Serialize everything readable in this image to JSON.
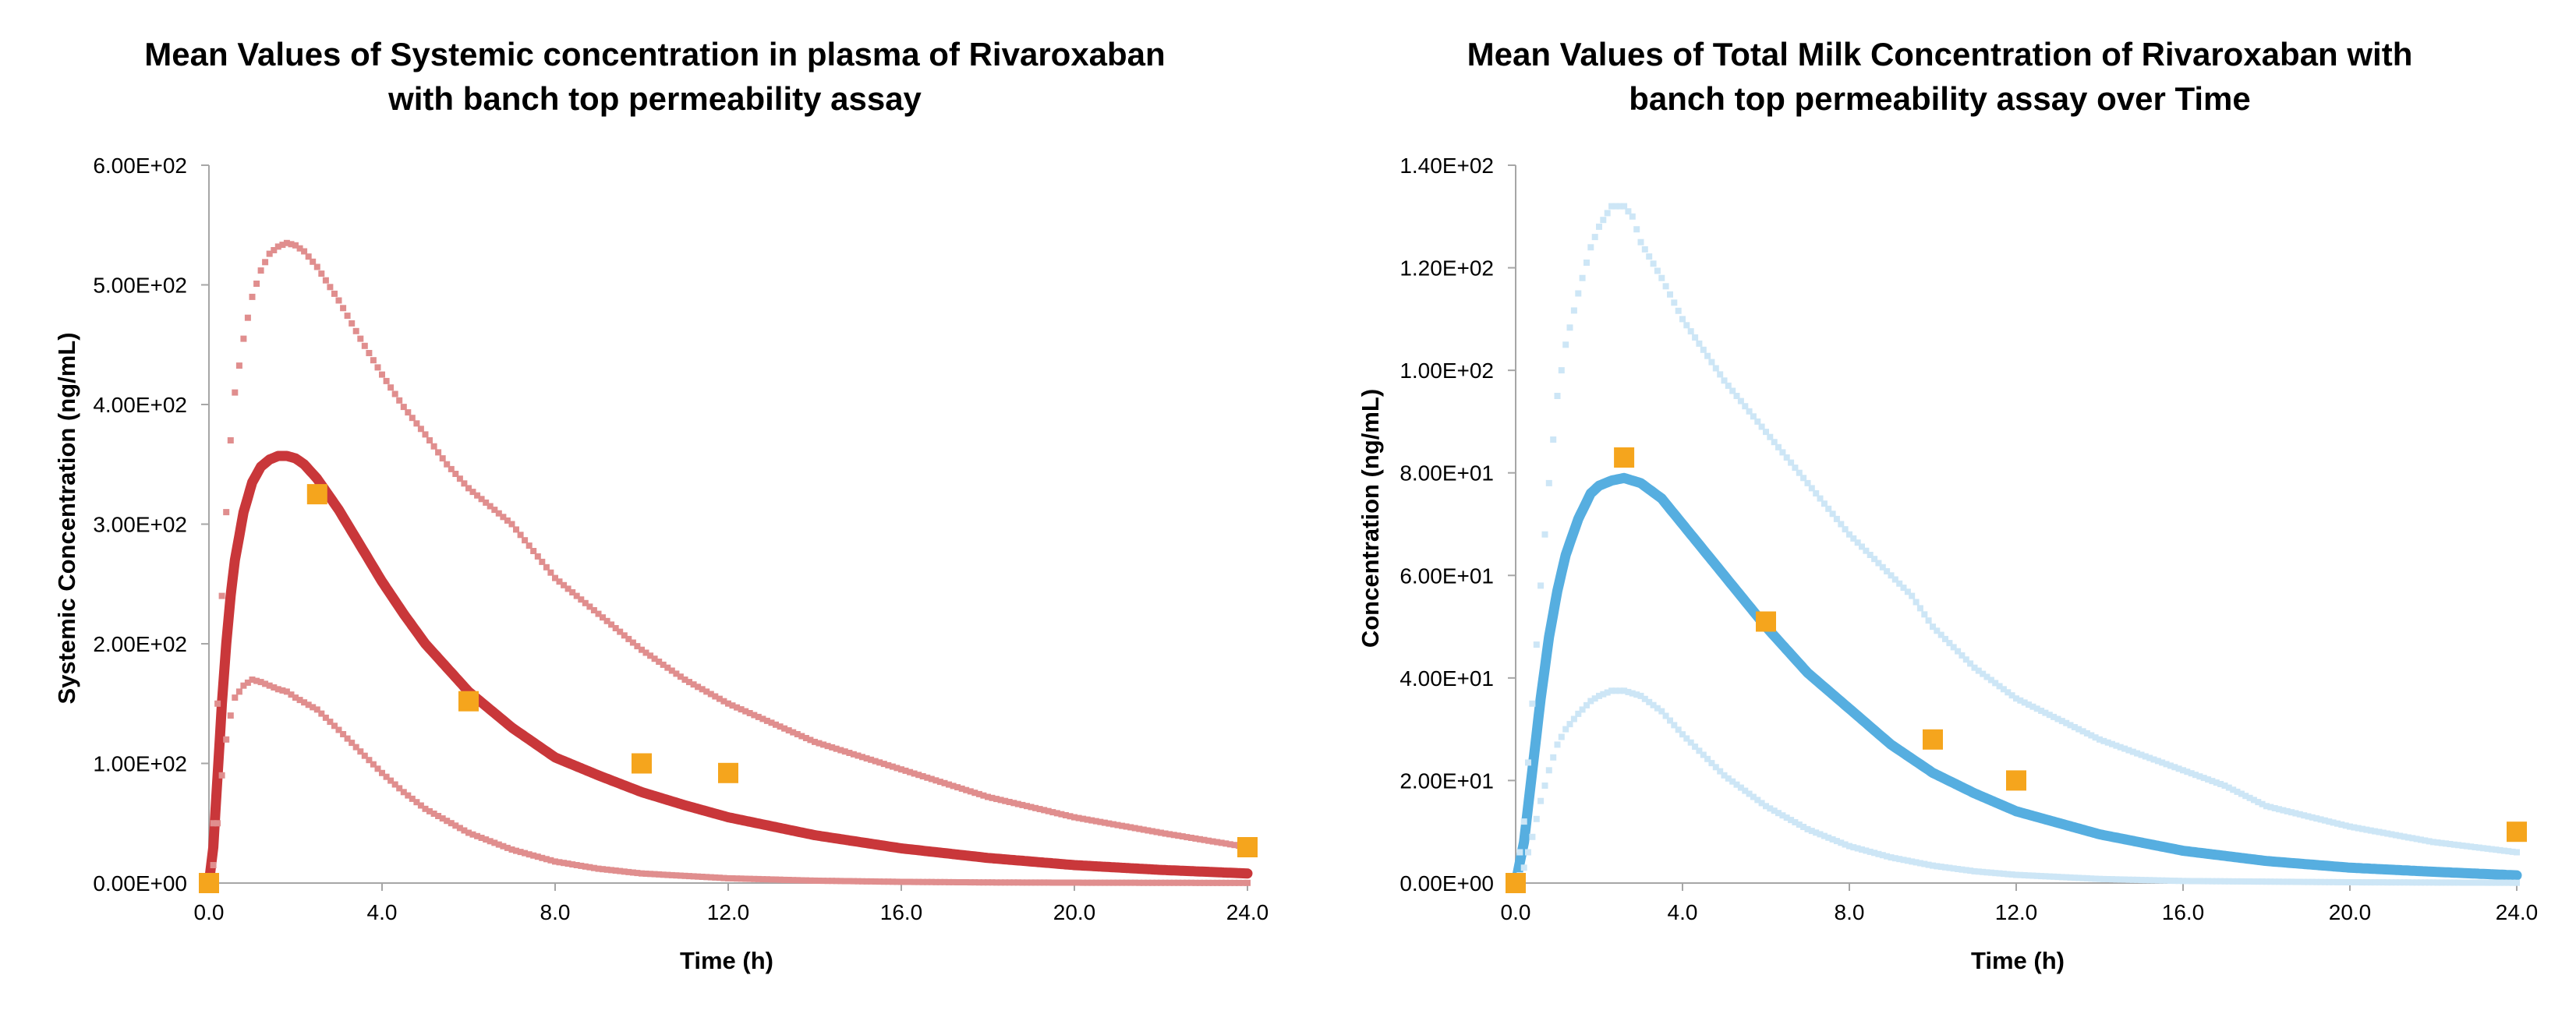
{
  "chart_data": [
    {
      "type": "line",
      "title_lines": [
        "Mean Values of Systemic concentration in plasma of Rivaroxaban",
        "with banch top permeability assay"
      ],
      "xlabel": "Time (h)",
      "ylabel": "Systemic Concentration (ng/mL)",
      "xlim": [
        0,
        24
      ],
      "ylim": [
        0,
        600
      ],
      "x_ticks": [
        0,
        4,
        8,
        12,
        16,
        20,
        24
      ],
      "x_tick_labels": [
        "0.0",
        "4.0",
        "8.0",
        "12.0",
        "16.0",
        "20.0",
        "24.0"
      ],
      "y_ticks": [
        0,
        100,
        200,
        300,
        400,
        500,
        600
      ],
      "y_tick_labels": [
        "0.00E+00",
        "1.00E+02",
        "2.00E+02",
        "3.00E+02",
        "4.00E+02",
        "5.00E+02",
        "6.00E+02"
      ],
      "grid": false,
      "legend": "none",
      "series": [
        {
          "role": "mean",
          "style": "line",
          "color": "#c9373a",
          "x": [
            0,
            0.1,
            0.2,
            0.3,
            0.4,
            0.5,
            0.6,
            0.8,
            1.0,
            1.2,
            1.4,
            1.6,
            1.8,
            2.0,
            2.2,
            2.5,
            3.0,
            3.5,
            4.0,
            4.5,
            5.0,
            6.0,
            7.0,
            8.0,
            9.0,
            10.0,
            11.0,
            12.0,
            14.0,
            16.0,
            18.0,
            20.0,
            22.0,
            24.0
          ],
          "values": [
            0,
            30,
            90,
            150,
            200,
            240,
            270,
            310,
            335,
            348,
            354,
            357,
            357,
            355,
            350,
            338,
            312,
            282,
            252,
            225,
            200,
            160,
            130,
            105,
            90,
            76,
            65,
            55,
            40,
            29,
            21,
            15,
            11,
            8
          ]
        },
        {
          "role": "upper",
          "style": "dotted",
          "color": "#e08e8e",
          "x": [
            0,
            0.1,
            0.2,
            0.3,
            0.4,
            0.5,
            0.6,
            0.8,
            1.0,
            1.2,
            1.4,
            1.6,
            1.8,
            2.0,
            2.2,
            2.5,
            3.0,
            3.5,
            4.0,
            4.5,
            5.0,
            5.5,
            6.0,
            7.0,
            8.0,
            9.0,
            10.0,
            11.0,
            12.0,
            14.0,
            16.0,
            18.0,
            20.0,
            22.0,
            24.0
          ],
          "values": [
            0,
            50,
            150,
            240,
            310,
            370,
            410,
            455,
            490,
            512,
            526,
            532,
            535,
            533,
            528,
            515,
            487,
            455,
            425,
            398,
            375,
            350,
            330,
            300,
            255,
            225,
            195,
            170,
            150,
            118,
            95,
            72,
            55,
            42,
            30
          ]
        },
        {
          "role": "lower",
          "style": "dotted",
          "color": "#e08e8e",
          "x": [
            0,
            0.1,
            0.2,
            0.3,
            0.4,
            0.5,
            0.6,
            0.8,
            1.0,
            1.2,
            1.4,
            1.6,
            1.8,
            2.0,
            2.5,
            3.0,
            3.5,
            4.0,
            4.5,
            5.0,
            6.0,
            7.0,
            8.0,
            9.0,
            10.0,
            12.0,
            14.0,
            16.0,
            18.0,
            20.0,
            24.0
          ],
          "values": [
            0,
            15,
            50,
            90,
            120,
            140,
            155,
            165,
            170,
            168,
            165,
            162,
            160,
            155,
            145,
            128,
            110,
            92,
            76,
            62,
            42,
            28,
            18,
            12,
            8,
            4,
            2,
            1,
            0.5,
            0.3,
            0.1
          ]
        },
        {
          "role": "observed",
          "style": "markers",
          "color": "#f5a51d",
          "x": [
            0,
            2.5,
            6.0,
            10.0,
            12.0,
            24.0
          ],
          "values": [
            0,
            325,
            152,
            100,
            92,
            30
          ]
        }
      ]
    },
    {
      "type": "line",
      "title_lines": [
        "Mean Values of Total Milk Concentration of Rivaroxaban with",
        "banch top permeability assay over Time"
      ],
      "xlabel": "Time (h)",
      "ylabel": "Concentration (ng/mL)",
      "xlim": [
        0,
        24
      ],
      "ylim": [
        0,
        140
      ],
      "x_ticks": [
        0,
        4,
        8,
        12,
        16,
        20,
        24
      ],
      "x_tick_labels": [
        "0.0",
        "4.0",
        "8.0",
        "12.0",
        "16.0",
        "20.0",
        "24.0"
      ],
      "y_ticks": [
        0,
        20,
        40,
        60,
        80,
        100,
        120,
        140
      ],
      "y_tick_labels": [
        "0.00E+00",
        "2.00E+01",
        "4.00E+01",
        "6.00E+01",
        "8.00E+01",
        "1.00E+02",
        "1.20E+02",
        "1.40E+02"
      ],
      "grid": false,
      "legend": "none",
      "series": [
        {
          "role": "mean",
          "style": "line",
          "color": "#56aee0",
          "x": [
            0,
            0.2,
            0.4,
            0.6,
            0.8,
            1.0,
            1.2,
            1.5,
            1.8,
            2.0,
            2.3,
            2.6,
            3.0,
            3.5,
            4.0,
            4.5,
            5.0,
            6.0,
            7.0,
            8.0,
            9.0,
            10.0,
            11.0,
            12.0,
            14.0,
            16.0,
            18.0,
            20.0,
            22.0,
            24.0
          ],
          "values": [
            0,
            8,
            22,
            36,
            48,
            57,
            64,
            71,
            76,
            77.5,
            78.5,
            79,
            78,
            75,
            70,
            65,
            60,
            50,
            41,
            34,
            27,
            21.5,
            17.5,
            14,
            9.5,
            6.3,
            4.3,
            3.0,
            2.2,
            1.5
          ]
        },
        {
          "role": "upper",
          "style": "dotted",
          "color": "#cde6f6",
          "x": [
            0,
            0.2,
            0.4,
            0.6,
            0.8,
            1.0,
            1.2,
            1.5,
            1.8,
            2.0,
            2.3,
            2.6,
            2.8,
            3.0,
            3.5,
            4.0,
            4.5,
            5.0,
            6.0,
            7.0,
            8.0,
            9.0,
            9.5,
            10.0,
            11.0,
            12.0,
            14.0,
            16.0,
            17.0,
            18.0,
            20.0,
            22.0,
            24.0
          ],
          "values": [
            0,
            12,
            35,
            58,
            78,
            95,
            105,
            115,
            124,
            128,
            132,
            132,
            130,
            125,
            118,
            110,
            104,
            98,
            88,
            78,
            68,
            60,
            56,
            50,
            42,
            36,
            28,
            22,
            19,
            15,
            11,
            8,
            6
          ]
        },
        {
          "role": "lower",
          "style": "dotted",
          "color": "#cde6f6",
          "x": [
            0,
            0.2,
            0.4,
            0.6,
            0.8,
            1.0,
            1.2,
            1.5,
            1.8,
            2.0,
            2.3,
            2.6,
            3.0,
            3.5,
            4.0,
            4.5,
            5.0,
            6.0,
            7.0,
            8.0,
            9.0,
            10.0,
            11.0,
            12.0,
            14.0,
            16.0,
            20.0,
            24.0
          ],
          "values": [
            0,
            3,
            9,
            16,
            22,
            27,
            30,
            33,
            35.5,
            36.5,
            37.5,
            37.5,
            36.5,
            33.5,
            29,
            25,
            21,
            15,
            10.5,
            7.2,
            5,
            3.4,
            2.3,
            1.6,
            0.8,
            0.4,
            0.15,
            0.05
          ]
        },
        {
          "role": "observed",
          "style": "markers",
          "color": "#f5a51d",
          "x": [
            0,
            2.6,
            6.0,
            10.0,
            12.0,
            24.0
          ],
          "values": [
            0,
            83,
            51,
            28,
            20,
            10
          ]
        }
      ]
    }
  ]
}
